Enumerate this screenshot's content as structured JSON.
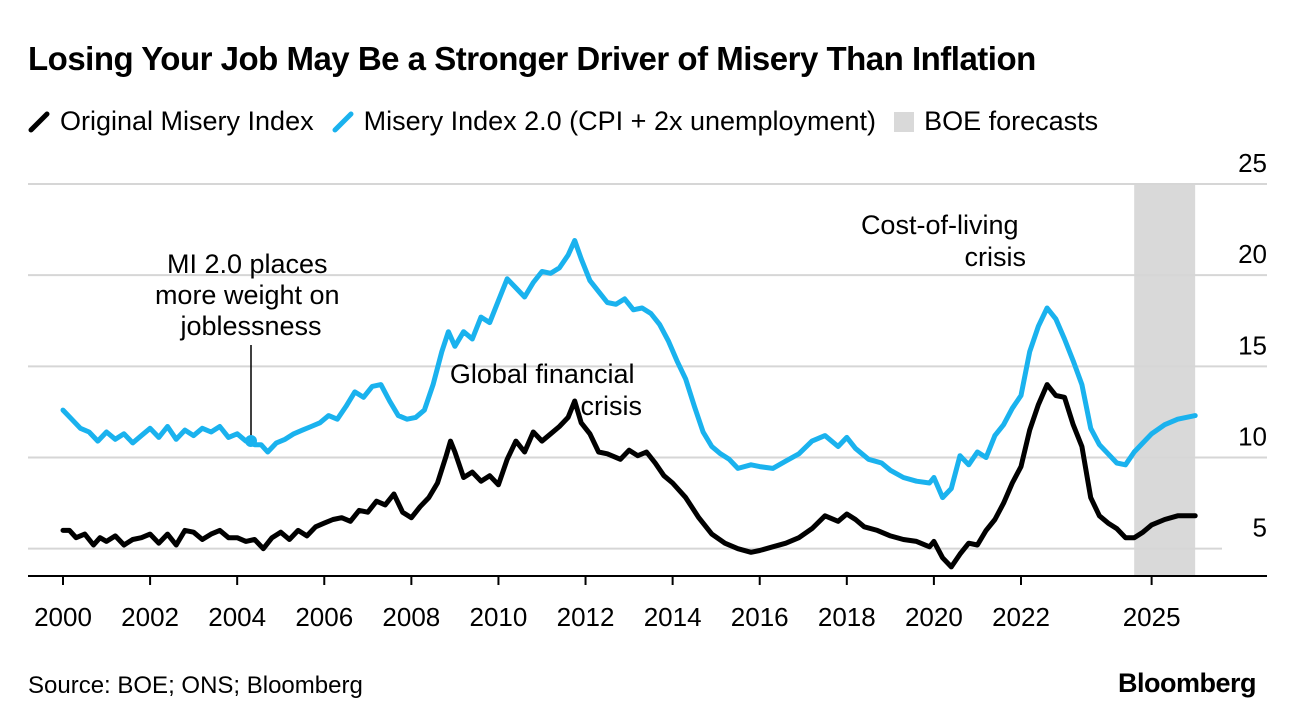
{
  "title": "Losing Your Job May Be a Stronger Driver of Misery Than Inflation",
  "legend": {
    "original": "Original Misery Index",
    "mi2": "Misery Index 2.0 (CPI + 2x unemployment)",
    "forecast": "BOE forecasts"
  },
  "colors": {
    "original": "#000000",
    "mi2": "#1ab2ee",
    "forecast": "#d9d9d9",
    "grid": "#d6d6d6"
  },
  "annotations": {
    "mi2": [
      "MI 2.0 places",
      "more weight on",
      "joblessness"
    ],
    "gfc": [
      "Global financial",
      "crisis"
    ],
    "col": [
      "Cost-of-living",
      "crisis"
    ]
  },
  "source": "Source: BOE; ONS; Bloomberg",
  "brand": "Bloomberg",
  "chart_data": {
    "type": "line",
    "title": "Losing Your Job May Be a Stronger Driver of Misery Than Inflation",
    "xlabel": "",
    "ylabel": "",
    "xlim": [
      2000,
      2026.8
    ],
    "ylim": [
      3.5,
      25
    ],
    "yticks": [
      5,
      10,
      15,
      20,
      25
    ],
    "xticks": [
      {
        "value": 2000,
        "label": "2000"
      },
      {
        "value": 2002,
        "label": "2002"
      },
      {
        "value": 2004,
        "label": "2004"
      },
      {
        "value": 2006,
        "label": "2006"
      },
      {
        "value": 2008,
        "label": "2008"
      },
      {
        "value": 2010,
        "label": "2010"
      },
      {
        "value": 2012,
        "label": "2012"
      },
      {
        "value": 2014,
        "label": "2014"
      },
      {
        "value": 2016,
        "label": "2016"
      },
      {
        "value": 2018,
        "label": "2018"
      },
      {
        "value": 2020,
        "label": "2020"
      },
      {
        "value": 2022,
        "label": "2022"
      },
      {
        "value": 2025,
        "label": "2025"
      }
    ],
    "forecast_range": [
      2024.6,
      2026.0
    ],
    "grid": true,
    "series": [
      {
        "name": "Original Misery Index",
        "points": [
          [
            2000.0,
            6.0
          ],
          [
            2000.15,
            6.0
          ],
          [
            2000.3,
            5.6
          ],
          [
            2000.5,
            5.8
          ],
          [
            2000.7,
            5.2
          ],
          [
            2000.85,
            5.6
          ],
          [
            2001.0,
            5.4
          ],
          [
            2001.2,
            5.7
          ],
          [
            2001.4,
            5.2
          ],
          [
            2001.6,
            5.5
          ],
          [
            2001.8,
            5.6
          ],
          [
            2002.0,
            5.8
          ],
          [
            2002.2,
            5.3
          ],
          [
            2002.4,
            5.8
          ],
          [
            2002.6,
            5.2
          ],
          [
            2002.8,
            6.0
          ],
          [
            2003.0,
            5.9
          ],
          [
            2003.2,
            5.5
          ],
          [
            2003.4,
            5.8
          ],
          [
            2003.6,
            6.0
          ],
          [
            2003.8,
            5.6
          ],
          [
            2004.0,
            5.6
          ],
          [
            2004.2,
            5.4
          ],
          [
            2004.4,
            5.5
          ],
          [
            2004.6,
            5.0
          ],
          [
            2004.8,
            5.6
          ],
          [
            2005.0,
            5.9
          ],
          [
            2005.2,
            5.5
          ],
          [
            2005.4,
            6.0
          ],
          [
            2005.6,
            5.7
          ],
          [
            2005.8,
            6.2
          ],
          [
            2006.0,
            6.4
          ],
          [
            2006.2,
            6.6
          ],
          [
            2006.4,
            6.7
          ],
          [
            2006.6,
            6.5
          ],
          [
            2006.8,
            7.1
          ],
          [
            2007.0,
            7.0
          ],
          [
            2007.2,
            7.6
          ],
          [
            2007.4,
            7.4
          ],
          [
            2007.6,
            8.0
          ],
          [
            2007.8,
            7.0
          ],
          [
            2008.0,
            6.7
          ],
          [
            2008.2,
            7.3
          ],
          [
            2008.4,
            7.8
          ],
          [
            2008.6,
            8.6
          ],
          [
            2008.8,
            10.1
          ],
          [
            2008.9,
            10.9
          ],
          [
            2009.0,
            10.3
          ],
          [
            2009.2,
            8.9
          ],
          [
            2009.4,
            9.2
          ],
          [
            2009.6,
            8.7
          ],
          [
            2009.8,
            9.0
          ],
          [
            2010.0,
            8.5
          ],
          [
            2010.2,
            9.9
          ],
          [
            2010.4,
            10.9
          ],
          [
            2010.6,
            10.3
          ],
          [
            2010.8,
            11.4
          ],
          [
            2011.0,
            10.9
          ],
          [
            2011.2,
            11.3
          ],
          [
            2011.4,
            11.7
          ],
          [
            2011.6,
            12.2
          ],
          [
            2011.75,
            13.1
          ],
          [
            2011.9,
            11.9
          ],
          [
            2012.1,
            11.3
          ],
          [
            2012.3,
            10.3
          ],
          [
            2012.5,
            10.2
          ],
          [
            2012.8,
            9.9
          ],
          [
            2013.0,
            10.4
          ],
          [
            2013.2,
            10.1
          ],
          [
            2013.4,
            10.3
          ],
          [
            2013.6,
            9.7
          ],
          [
            2013.8,
            9.0
          ],
          [
            2014.0,
            8.6
          ],
          [
            2014.3,
            7.8
          ],
          [
            2014.6,
            6.7
          ],
          [
            2014.9,
            5.8
          ],
          [
            2015.2,
            5.3
          ],
          [
            2015.5,
            5.0
          ],
          [
            2015.8,
            4.8
          ],
          [
            2016.0,
            4.9
          ],
          [
            2016.3,
            5.1
          ],
          [
            2016.6,
            5.3
          ],
          [
            2016.9,
            5.6
          ],
          [
            2017.2,
            6.1
          ],
          [
            2017.5,
            6.8
          ],
          [
            2017.8,
            6.5
          ],
          [
            2018.0,
            6.9
          ],
          [
            2018.2,
            6.6
          ],
          [
            2018.4,
            6.2
          ],
          [
            2018.7,
            6.0
          ],
          [
            2019.0,
            5.7
          ],
          [
            2019.3,
            5.5
          ],
          [
            2019.6,
            5.4
          ],
          [
            2019.9,
            5.1
          ],
          [
            2020.0,
            5.4
          ],
          [
            2020.2,
            4.5
          ],
          [
            2020.4,
            4.0
          ],
          [
            2020.6,
            4.7
          ],
          [
            2020.8,
            5.3
          ],
          [
            2021.0,
            5.2
          ],
          [
            2021.2,
            6.0
          ],
          [
            2021.4,
            6.6
          ],
          [
            2021.6,
            7.5
          ],
          [
            2021.8,
            8.6
          ],
          [
            2022.0,
            9.5
          ],
          [
            2022.2,
            11.5
          ],
          [
            2022.4,
            12.9
          ],
          [
            2022.6,
            14.0
          ],
          [
            2022.8,
            13.4
          ],
          [
            2023.0,
            13.3
          ],
          [
            2023.2,
            11.8
          ],
          [
            2023.4,
            10.6
          ],
          [
            2023.6,
            7.8
          ],
          [
            2023.8,
            6.8
          ],
          [
            2024.0,
            6.4
          ],
          [
            2024.2,
            6.1
          ],
          [
            2024.4,
            5.6
          ],
          [
            2024.6,
            5.6
          ],
          [
            2024.8,
            5.9
          ],
          [
            2025.0,
            6.3
          ],
          [
            2025.3,
            6.6
          ],
          [
            2025.6,
            6.8
          ],
          [
            2026.0,
            6.8
          ]
        ]
      },
      {
        "name": "Misery Index 2.0 (CPI + 2x unemployment)",
        "points": [
          [
            2000.0,
            12.6
          ],
          [
            2000.2,
            12.1
          ],
          [
            2000.4,
            11.6
          ],
          [
            2000.6,
            11.4
          ],
          [
            2000.8,
            10.9
          ],
          [
            2001.0,
            11.4
          ],
          [
            2001.2,
            11.0
          ],
          [
            2001.4,
            11.3
          ],
          [
            2001.6,
            10.8
          ],
          [
            2001.8,
            11.2
          ],
          [
            2002.0,
            11.6
          ],
          [
            2002.2,
            11.1
          ],
          [
            2002.4,
            11.7
          ],
          [
            2002.6,
            11.0
          ],
          [
            2002.8,
            11.5
          ],
          [
            2003.0,
            11.2
          ],
          [
            2003.2,
            11.6
          ],
          [
            2003.4,
            11.4
          ],
          [
            2003.6,
            11.7
          ],
          [
            2003.8,
            11.1
          ],
          [
            2004.0,
            11.3
          ],
          [
            2004.2,
            10.9
          ],
          [
            2004.4,
            10.7
          ],
          [
            2004.55,
            10.7
          ],
          [
            2004.7,
            10.3
          ],
          [
            2004.9,
            10.8
          ],
          [
            2005.1,
            11.0
          ],
          [
            2005.3,
            11.3
          ],
          [
            2005.5,
            11.5
          ],
          [
            2005.7,
            11.7
          ],
          [
            2005.9,
            11.9
          ],
          [
            2006.1,
            12.3
          ],
          [
            2006.3,
            12.1
          ],
          [
            2006.5,
            12.8
          ],
          [
            2006.7,
            13.6
          ],
          [
            2006.9,
            13.3
          ],
          [
            2007.1,
            13.9
          ],
          [
            2007.3,
            14.0
          ],
          [
            2007.5,
            13.1
          ],
          [
            2007.7,
            12.3
          ],
          [
            2007.9,
            12.1
          ],
          [
            2008.1,
            12.2
          ],
          [
            2008.3,
            12.6
          ],
          [
            2008.5,
            14.0
          ],
          [
            2008.7,
            15.8
          ],
          [
            2008.85,
            16.9
          ],
          [
            2009.0,
            16.1
          ],
          [
            2009.2,
            16.9
          ],
          [
            2009.4,
            16.5
          ],
          [
            2009.6,
            17.7
          ],
          [
            2009.8,
            17.4
          ],
          [
            2010.0,
            18.6
          ],
          [
            2010.2,
            19.8
          ],
          [
            2010.4,
            19.3
          ],
          [
            2010.6,
            18.8
          ],
          [
            2010.8,
            19.6
          ],
          [
            2011.0,
            20.2
          ],
          [
            2011.2,
            20.1
          ],
          [
            2011.4,
            20.4
          ],
          [
            2011.6,
            21.1
          ],
          [
            2011.75,
            21.9
          ],
          [
            2011.9,
            20.9
          ],
          [
            2012.1,
            19.7
          ],
          [
            2012.3,
            19.1
          ],
          [
            2012.5,
            18.5
          ],
          [
            2012.7,
            18.4
          ],
          [
            2012.9,
            18.7
          ],
          [
            2013.1,
            18.1
          ],
          [
            2013.3,
            18.2
          ],
          [
            2013.5,
            17.9
          ],
          [
            2013.7,
            17.3
          ],
          [
            2013.9,
            16.4
          ],
          [
            2014.1,
            15.3
          ],
          [
            2014.3,
            14.3
          ],
          [
            2014.5,
            12.8
          ],
          [
            2014.7,
            11.4
          ],
          [
            2014.9,
            10.6
          ],
          [
            2015.1,
            10.2
          ],
          [
            2015.3,
            9.9
          ],
          [
            2015.5,
            9.4
          ],
          [
            2015.8,
            9.6
          ],
          [
            2016.0,
            9.5
          ],
          [
            2016.3,
            9.4
          ],
          [
            2016.6,
            9.8
          ],
          [
            2016.9,
            10.2
          ],
          [
            2017.2,
            10.9
          ],
          [
            2017.5,
            11.2
          ],
          [
            2017.8,
            10.6
          ],
          [
            2018.0,
            11.1
          ],
          [
            2018.2,
            10.5
          ],
          [
            2018.5,
            9.9
          ],
          [
            2018.8,
            9.7
          ],
          [
            2019.0,
            9.3
          ],
          [
            2019.3,
            8.9
          ],
          [
            2019.6,
            8.7
          ],
          [
            2019.9,
            8.6
          ],
          [
            2020.0,
            8.9
          ],
          [
            2020.2,
            7.8
          ],
          [
            2020.4,
            8.3
          ],
          [
            2020.6,
            10.1
          ],
          [
            2020.8,
            9.6
          ],
          [
            2021.0,
            10.3
          ],
          [
            2021.2,
            10.0
          ],
          [
            2021.4,
            11.2
          ],
          [
            2021.6,
            11.8
          ],
          [
            2021.8,
            12.7
          ],
          [
            2022.0,
            13.4
          ],
          [
            2022.2,
            15.8
          ],
          [
            2022.4,
            17.2
          ],
          [
            2022.6,
            18.2
          ],
          [
            2022.8,
            17.6
          ],
          [
            2023.0,
            16.5
          ],
          [
            2023.2,
            15.3
          ],
          [
            2023.4,
            14.0
          ],
          [
            2023.6,
            11.6
          ],
          [
            2023.8,
            10.7
          ],
          [
            2024.0,
            10.2
          ],
          [
            2024.2,
            9.7
          ],
          [
            2024.4,
            9.6
          ],
          [
            2024.6,
            10.3
          ],
          [
            2024.8,
            10.8
          ],
          [
            2025.0,
            11.3
          ],
          [
            2025.3,
            11.8
          ],
          [
            2025.6,
            12.1
          ],
          [
            2026.0,
            12.3
          ]
        ]
      }
    ]
  }
}
